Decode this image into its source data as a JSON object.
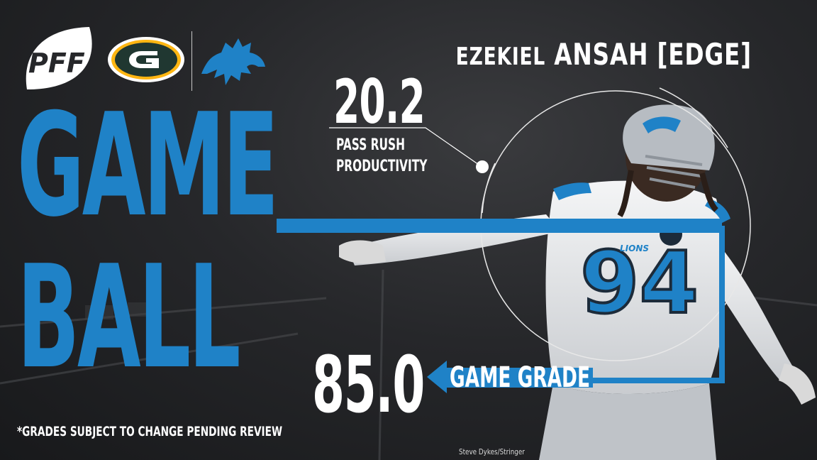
{
  "brand": {
    "pff_logo": "PFF",
    "team_logos": [
      "green-bay-packers-logo",
      "detroit-lions-logo"
    ]
  },
  "headline": {
    "line1": "GAME",
    "line2": "BALL"
  },
  "player": {
    "first_name": "EZEKIEL",
    "last_name_position": "ANSAH [EDGE]",
    "jersey_number": "94",
    "jersey_wordmark": "LIONS"
  },
  "stat": {
    "value": "20.2",
    "label_line1": "PASS RUSH",
    "label_line2": "PRODUCTIVITY"
  },
  "grade": {
    "value": "85.0",
    "label": "GAME GRADE"
  },
  "disclaimer": "*GRADES SUBJECT TO CHANGE PENDING REVIEW",
  "photo_credit": "Steve Dykes/Stringer",
  "colors": {
    "accent_blue": "#1f82c7",
    "background": "#26272a",
    "text": "#ffffff",
    "packers_green": "#203731",
    "packers_gold": "#ffb612"
  }
}
